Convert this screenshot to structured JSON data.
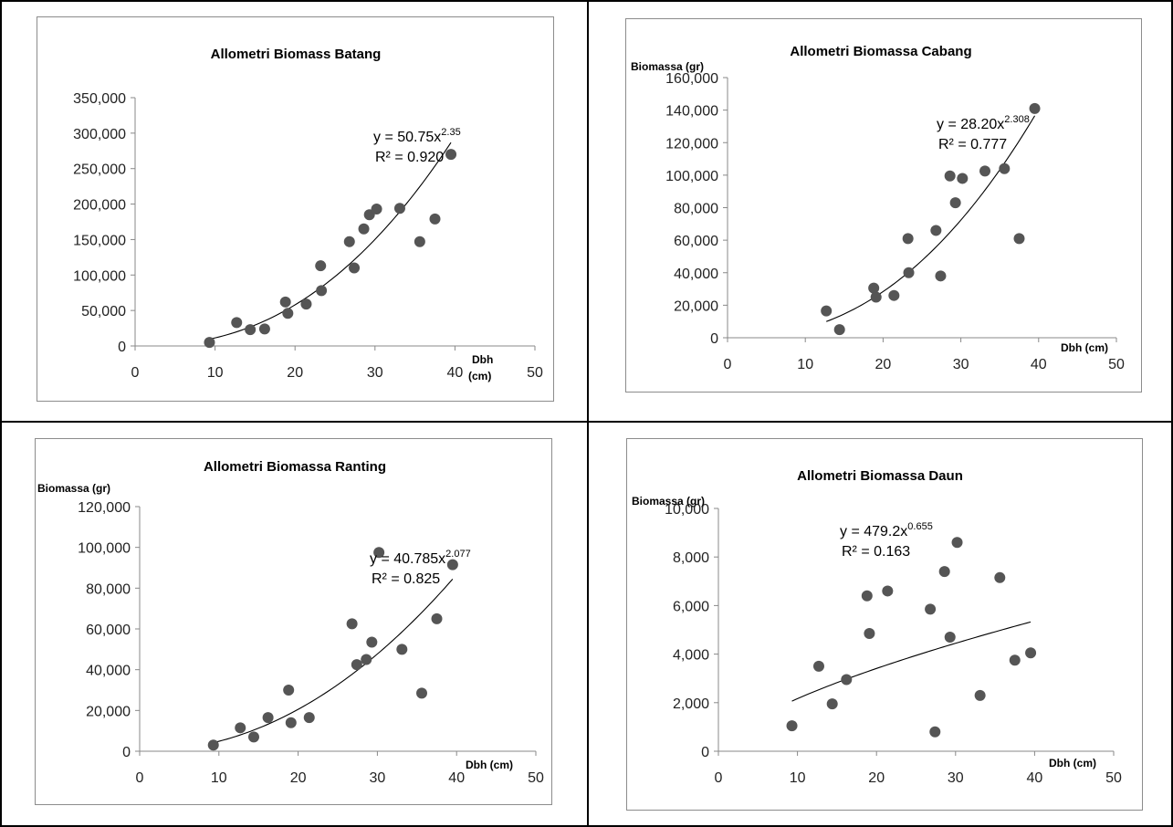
{
  "chart_data": [
    {
      "type": "scatter",
      "title": "Allometri Biomass Batang",
      "ylabel": "",
      "xlabel_lines": [
        "Dbh",
        "(cm)"
      ],
      "xlim": [
        0,
        50
      ],
      "ylim": [
        0,
        350000
      ],
      "x_ticks": [
        "0",
        "10",
        "20",
        "30",
        "40",
        "50"
      ],
      "y_ticks": [
        "0",
        "50,000",
        "100,000",
        "150,000",
        "200,000",
        "250,000",
        "300,000",
        "350,000"
      ],
      "trendline": {
        "type": "power",
        "a": 50.75,
        "b": 2.35,
        "x_range": [
          9,
          39.5
        ]
      },
      "equation": {
        "base": "y = 50.75x",
        "exp": "2.35",
        "r2": "R² = 0.920"
      },
      "points": [
        {
          "x": 9.3,
          "y": 5000
        },
        {
          "x": 12.7,
          "y": 33000
        },
        {
          "x": 14.4,
          "y": 23000
        },
        {
          "x": 16.2,
          "y": 24000
        },
        {
          "x": 18.8,
          "y": 62000
        },
        {
          "x": 19.1,
          "y": 46000
        },
        {
          "x": 21.4,
          "y": 59000
        },
        {
          "x": 23.2,
          "y": 113000
        },
        {
          "x": 23.3,
          "y": 78000
        },
        {
          "x": 26.8,
          "y": 147000
        },
        {
          "x": 27.4,
          "y": 110000
        },
        {
          "x": 28.6,
          "y": 165000
        },
        {
          "x": 29.3,
          "y": 185000
        },
        {
          "x": 30.2,
          "y": 193000
        },
        {
          "x": 33.1,
          "y": 194000
        },
        {
          "x": 35.6,
          "y": 147000
        },
        {
          "x": 37.5,
          "y": 179000
        },
        {
          "x": 39.5,
          "y": 270000
        }
      ]
    },
    {
      "type": "scatter",
      "title": "Allometri Biomassa Cabang",
      "ylabel": "Biomassa (gr)",
      "xlabel_lines": [
        "Dbh (cm)"
      ],
      "xlim": [
        0,
        50
      ],
      "ylim": [
        0,
        160000
      ],
      "x_ticks": [
        "0",
        "10",
        "20",
        "30",
        "40",
        "50"
      ],
      "y_ticks": [
        "0",
        "20,000",
        "40,000",
        "60,000",
        "80,000",
        "100,000",
        "120,000",
        "140,000",
        "160,000"
      ],
      "trendline": {
        "type": "power",
        "a": 28.2,
        "b": 2.308,
        "x_range": [
          12.7,
          39.5
        ]
      },
      "equation": {
        "base": "y = 28.20x",
        "exp": "2.308",
        "r2": "R² = 0.777"
      },
      "points": [
        {
          "x": 12.7,
          "y": 16500
        },
        {
          "x": 14.4,
          "y": 5000
        },
        {
          "x": 18.8,
          "y": 30500
        },
        {
          "x": 19.1,
          "y": 25000
        },
        {
          "x": 21.4,
          "y": 26000
        },
        {
          "x": 23.2,
          "y": 61000
        },
        {
          "x": 23.3,
          "y": 40000
        },
        {
          "x": 26.8,
          "y": 66000
        },
        {
          "x": 27.4,
          "y": 38000
        },
        {
          "x": 28.6,
          "y": 99500
        },
        {
          "x": 29.3,
          "y": 83000
        },
        {
          "x": 30.2,
          "y": 98000
        },
        {
          "x": 33.1,
          "y": 102500
        },
        {
          "x": 35.6,
          "y": 104000
        },
        {
          "x": 37.5,
          "y": 61000
        },
        {
          "x": 39.5,
          "y": 141000
        }
      ]
    },
    {
      "type": "scatter",
      "title": "Allometri Biomassa Ranting",
      "ylabel": "Biomassa (gr)",
      "xlabel_lines": [
        "Dbh (cm)"
      ],
      "xlim": [
        0,
        50
      ],
      "ylim": [
        0,
        120000
      ],
      "x_ticks": [
        "0",
        "10",
        "20",
        "30",
        "40",
        "50"
      ],
      "y_ticks": [
        "0",
        "20,000",
        "40,000",
        "60,000",
        "80,000",
        "100,000",
        "120,000"
      ],
      "trendline": {
        "type": "power",
        "a": 40.785,
        "b": 2.077,
        "x_range": [
          9,
          39.5
        ]
      },
      "equation": {
        "base": "y = 40.785x",
        "exp": "2.077",
        "r2": "R² = 0.825"
      },
      "points": [
        {
          "x": 9.3,
          "y": 3000
        },
        {
          "x": 12.7,
          "y": 11500
        },
        {
          "x": 14.4,
          "y": 7000
        },
        {
          "x": 16.2,
          "y": 16500
        },
        {
          "x": 18.8,
          "y": 30000
        },
        {
          "x": 19.1,
          "y": 14000
        },
        {
          "x": 21.4,
          "y": 16500
        },
        {
          "x": 26.8,
          "y": 62500
        },
        {
          "x": 27.4,
          "y": 42500
        },
        {
          "x": 28.6,
          "y": 45000
        },
        {
          "x": 29.3,
          "y": 53500
        },
        {
          "x": 30.2,
          "y": 97500
        },
        {
          "x": 33.1,
          "y": 50000
        },
        {
          "x": 35.6,
          "y": 28500
        },
        {
          "x": 37.5,
          "y": 65000
        },
        {
          "x": 39.5,
          "y": 91500
        }
      ]
    },
    {
      "type": "scatter",
      "title": "Allometri Biomassa Daun",
      "ylabel": "Biomassa (gr)",
      "xlabel_lines": [
        "Dbh (cm)"
      ],
      "xlim": [
        0,
        50
      ],
      "ylim": [
        0,
        10000
      ],
      "x_ticks": [
        "0",
        "10",
        "20",
        "30",
        "40",
        "50"
      ],
      "y_ticks": [
        "0",
        "2,000",
        "4,000",
        "6,000",
        "8,000",
        "10,000"
      ],
      "trendline": {
        "type": "power",
        "a": 479.2,
        "b": 0.655,
        "x_range": [
          9.3,
          39.5
        ]
      },
      "equation": {
        "base": "y = 479.2x",
        "exp": "0.655",
        "r2": "R² = 0.163"
      },
      "points": [
        {
          "x": 9.3,
          "y": 1050
        },
        {
          "x": 12.7,
          "y": 3500
        },
        {
          "x": 14.4,
          "y": 1950
        },
        {
          "x": 16.2,
          "y": 2950
        },
        {
          "x": 18.8,
          "y": 6400
        },
        {
          "x": 19.1,
          "y": 4850
        },
        {
          "x": 21.4,
          "y": 6600
        },
        {
          "x": 26.8,
          "y": 5850
        },
        {
          "x": 27.4,
          "y": 800
        },
        {
          "x": 28.6,
          "y": 7400
        },
        {
          "x": 29.3,
          "y": 4700
        },
        {
          "x": 30.2,
          "y": 8600
        },
        {
          "x": 33.1,
          "y": 2300
        },
        {
          "x": 35.6,
          "y": 7150
        },
        {
          "x": 37.5,
          "y": 3750
        },
        {
          "x": 39.5,
          "y": 4050
        }
      ]
    }
  ]
}
